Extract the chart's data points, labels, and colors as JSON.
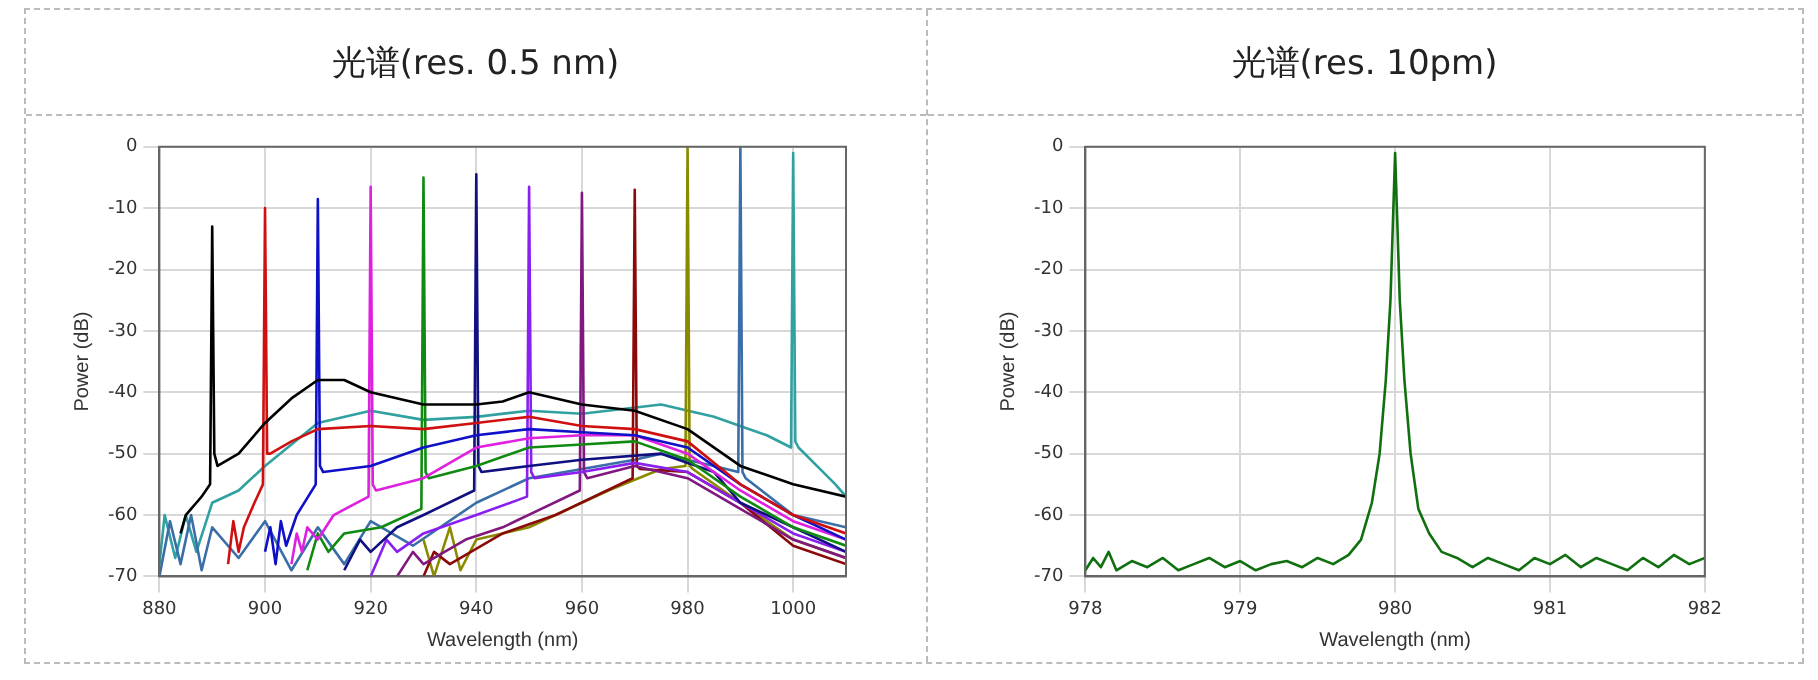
{
  "chart_data": [
    {
      "type": "line",
      "title": "光谱(res. 0.5 nm)",
      "xlabel": "Wavelength (nm)",
      "ylabel": "Power (dB)",
      "xlim": [
        880,
        1010
      ],
      "xticks": [
        880,
        900,
        920,
        940,
        960,
        980,
        1000
      ],
      "ylim": [
        -70,
        0
      ],
      "yticks": [
        0,
        -10,
        -20,
        -30,
        -40,
        -50,
        -60,
        -70
      ],
      "grid": true,
      "legend": false,
      "marker": "none",
      "line_style": "solid",
      "series": [
        {
          "color": "#000000",
          "x": [
            884,
            885,
            886,
            887,
            888,
            889.6,
            890,
            890.4,
            891,
            895,
            900,
            905,
            910,
            915,
            920,
            930,
            940,
            945,
            950,
            960,
            970,
            980,
            990,
            1000,
            1010
          ],
          "values": [
            -63,
            -60,
            -59,
            -58,
            -57,
            -55,
            -13,
            -50,
            -52,
            -50,
            -45,
            -41,
            -38,
            -38,
            -40,
            -42,
            -42,
            -41.5,
            -40,
            -42,
            -43,
            -46,
            -52,
            -55,
            -57
          ]
        },
        {
          "color": "#d01010",
          "x": [
            893,
            894,
            895,
            896,
            897,
            898,
            899.6,
            900,
            900.4,
            901,
            905,
            910,
            920,
            930,
            940,
            950,
            960,
            970,
            980,
            990,
            1000,
            1010
          ],
          "values": [
            -68,
            -61,
            -66,
            -62,
            -60,
            -58,
            -55,
            -10,
            -50,
            -50,
            -48,
            -46,
            -45.5,
            -46,
            -45,
            -44,
            -45.5,
            -46,
            -48,
            -55,
            -60,
            -63
          ]
        },
        {
          "color": "#1010c8",
          "x": [
            900,
            901,
            902,
            903,
            904,
            906,
            909.6,
            910,
            910.4,
            911,
            920,
            930,
            940,
            950,
            960,
            970,
            980,
            990,
            1000,
            1010
          ],
          "values": [
            -66,
            -62,
            -68,
            -61,
            -65,
            -60,
            -55,
            -8.5,
            -52,
            -53,
            -52,
            -49,
            -47,
            -46,
            -46.5,
            -47,
            -49,
            -55,
            -60,
            -64
          ]
        },
        {
          "color": "#e020e0",
          "x": [
            905,
            906,
            907,
            908,
            910,
            913,
            919.6,
            920,
            920.4,
            921,
            930,
            940,
            950,
            960,
            970,
            980,
            990,
            1000,
            1010
          ],
          "values": [
            -68,
            -63,
            -66,
            -62,
            -64,
            -60,
            -57,
            -6.5,
            -55,
            -56,
            -54,
            -49,
            -47.5,
            -47,
            -47,
            -50,
            -56,
            -61,
            -64
          ]
        },
        {
          "color": "#108a10",
          "x": [
            908,
            910,
            912,
            915,
            922,
            929.6,
            930,
            930.4,
            931,
            940,
            950,
            960,
            970,
            980,
            990,
            1000,
            1010
          ],
          "values": [
            -69,
            -63,
            -66,
            -63,
            -62,
            -59,
            -5,
            -53,
            -54,
            -52,
            -49,
            -48.5,
            -48,
            -51,
            -57,
            -62,
            -65
          ]
        },
        {
          "color": "#101080",
          "x": [
            915,
            918,
            920,
            925,
            930,
            939.6,
            940,
            940.4,
            941,
            950,
            960,
            975,
            985,
            990,
            1000,
            1010
          ],
          "values": [
            -69,
            -64,
            -66,
            -62,
            -60,
            -56,
            -4.5,
            -52,
            -53,
            -52,
            -51,
            -50,
            -53,
            -58,
            -62,
            -66
          ]
        },
        {
          "color": "#8a20f0",
          "x": [
            920,
            923,
            925,
            930,
            940,
            949.6,
            950,
            950.4,
            951,
            960,
            970,
            980,
            990,
            1000,
            1010
          ],
          "values": [
            -70,
            -64,
            -66,
            -63,
            -60,
            -57,
            -6.5,
            -53,
            -54,
            -53,
            -51.5,
            -53,
            -58,
            -63,
            -66
          ]
        },
        {
          "color": "#801880",
          "x": [
            925,
            928,
            930,
            938,
            945,
            959.6,
            960,
            960.4,
            961,
            970,
            980,
            990,
            1000,
            1010
          ],
          "values": [
            -70,
            -66,
            -68,
            -64,
            -62,
            -56,
            -7.5,
            -53,
            -54,
            -52,
            -54,
            -59,
            -64,
            -67
          ]
        },
        {
          "color": "#8a0a0a",
          "x": [
            930,
            932,
            935,
            945,
            955,
            969.6,
            970,
            970.4,
            971,
            980,
            990,
            1000,
            1010
          ],
          "values": [
            -70,
            -66,
            -68,
            -63,
            -60,
            -54,
            -7,
            -52,
            -52.5,
            -53,
            -58,
            -65,
            -68
          ]
        },
        {
          "color": "#8a8a00",
          "x": [
            930,
            932,
            935,
            937,
            940,
            950,
            965,
            975,
            979.6,
            980,
            980.4,
            981,
            990,
            1000,
            1010
          ],
          "values": [
            -64,
            -70,
            -62,
            -69,
            -64,
            -62,
            -56,
            -52.5,
            -52,
            0,
            -52,
            -52.5,
            -58,
            -64,
            -67
          ]
        },
        {
          "color": "#3a6ea8",
          "x": [
            880,
            882,
            884,
            886,
            888,
            890,
            895,
            900,
            905,
            910,
            915,
            920,
            928,
            940,
            950,
            970,
            975,
            985,
            989.6,
            990,
            990.4,
            991,
            1000,
            1010
          ],
          "values": [
            -70,
            -61,
            -68,
            -60,
            -69,
            -62,
            -67,
            -61,
            -69,
            -62,
            -68,
            -61,
            -65,
            -58,
            -54,
            -51,
            -50,
            -52,
            -53,
            0,
            -53,
            -54,
            -60,
            -62
          ]
        },
        {
          "color": "#30a0a0",
          "x": [
            880,
            881,
            883,
            885,
            887,
            890,
            895,
            900,
            910,
            920,
            930,
            940,
            950,
            960,
            975,
            985,
            995,
            999.6,
            1000,
            1000.4,
            1001,
            1008,
            1010
          ],
          "values": [
            -68,
            -60,
            -67,
            -60,
            -66,
            -58,
            -56,
            -52,
            -45,
            -43,
            -44.5,
            -44,
            -43,
            -43.5,
            -42,
            -44,
            -47,
            -49,
            -1,
            -48,
            -49,
            -55,
            -57
          ]
        }
      ]
    },
    {
      "type": "line",
      "title": "光谱(res. 10pm)",
      "xlabel": "Wavelength (nm)",
      "ylabel": "Power (dB)",
      "xlim": [
        978,
        982
      ],
      "xticks": [
        978,
        979,
        980,
        981,
        982
      ],
      "ylim": [
        -70,
        0
      ],
      "yticks": [
        0,
        -10,
        -20,
        -30,
        -40,
        -50,
        -60,
        -70
      ],
      "grid": true,
      "legend": false,
      "marker": "none",
      "line_style": "solid",
      "series": [
        {
          "color": "#107010",
          "x": [
            978,
            978.05,
            978.1,
            978.15,
            978.2,
            978.3,
            978.4,
            978.5,
            978.6,
            978.7,
            978.8,
            978.9,
            979,
            979.1,
            979.2,
            979.3,
            979.4,
            979.5,
            979.6,
            979.7,
            979.78,
            979.85,
            979.9,
            979.94,
            979.97,
            980,
            980.03,
            980.06,
            980.1,
            980.15,
            980.22,
            980.3,
            980.4,
            980.5,
            980.6,
            980.7,
            980.8,
            980.9,
            981,
            981.1,
            981.2,
            981.3,
            981.4,
            981.5,
            981.6,
            981.7,
            981.8,
            981.9,
            982
          ],
          "values": [
            -69,
            -67,
            -68.5,
            -66,
            -69,
            -67.5,
            -68.5,
            -67,
            -69,
            -68,
            -67,
            -68.5,
            -67.5,
            -69,
            -68,
            -67.5,
            -68.5,
            -67,
            -68,
            -66.5,
            -64,
            -58,
            -50,
            -38,
            -25,
            -1,
            -25,
            -38,
            -50,
            -59,
            -63,
            -66,
            -67,
            -68.5,
            -67,
            -68,
            -69,
            -67,
            -68,
            -66.5,
            -68.5,
            -67,
            -68,
            -69,
            -67,
            -68.5,
            -66.5,
            -68,
            -67
          ]
        }
      ]
    }
  ]
}
